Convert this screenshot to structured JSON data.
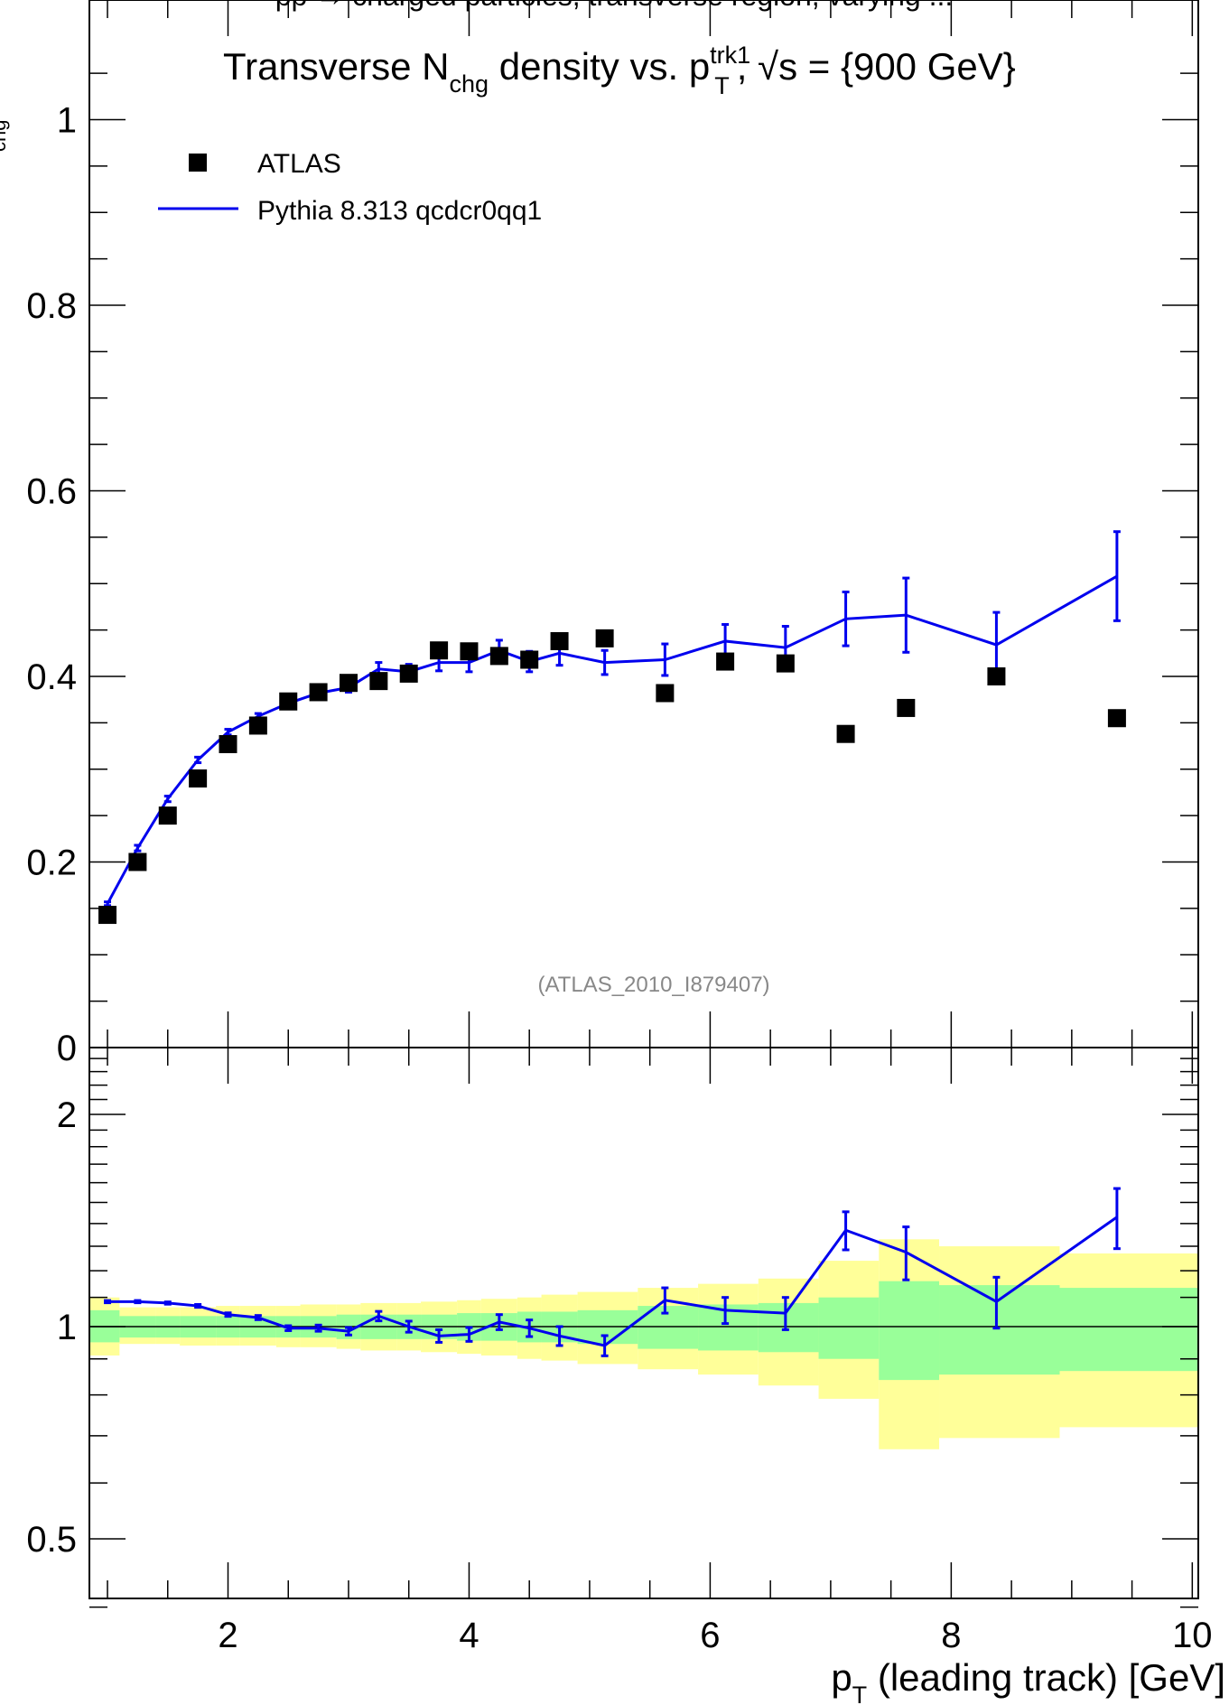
{
  "header_fragment": "pp → charged particles, transverse region, varying ...",
  "chart_data": [
    {
      "type": "scatter",
      "panel": "main",
      "title": {
        "base": "Transverse N",
        "sub": "chg",
        "mid": " density vs. p",
        "sup": "trk1",
        "sub2": "T",
        "suffix": ", √s = {900 GeV}"
      },
      "ylim": [
        0,
        1.1
      ],
      "xlim": [
        0.85,
        10.05
      ],
      "yticks": [
        "0",
        "0.2",
        "0.4",
        "0.6",
        "0.8",
        "1"
      ],
      "ytick_values": [
        0,
        0.2,
        0.4,
        0.6,
        0.8,
        1.0
      ],
      "ylabel_fragment": "chg",
      "annotation": "(ATLAS_2010_I879407)",
      "legend": {
        "placement": "top-left",
        "entries": [
          {
            "label": "ATLAS",
            "marker": "square",
            "color": "#000000"
          },
          {
            "label": "Pythia 8.313 qcdcr0qq1",
            "marker": "line",
            "color": "#0000ee"
          }
        ]
      },
      "series": [
        {
          "name": "ATLAS",
          "color": "#000000",
          "x": [
            1.0,
            1.25,
            1.5,
            1.75,
            2.0,
            2.25,
            2.5,
            2.75,
            3.0,
            3.25,
            3.5,
            3.75,
            4.0,
            4.25,
            4.5,
            4.75,
            5.125,
            5.625,
            6.125,
            6.625,
            7.125,
            7.625,
            8.375,
            9.375
          ],
          "y": [
            0.143,
            0.2,
            0.25,
            0.29,
            0.327,
            0.347,
            0.373,
            0.383,
            0.393,
            0.395,
            0.403,
            0.428,
            0.427,
            0.422,
            0.418,
            0.438,
            0.441,
            0.382,
            0.416,
            0.414,
            0.338,
            0.366,
            0.4,
            0.355
          ]
        },
        {
          "name": "Pythia 8.313 qcdcr0qq1",
          "color": "#0000ee",
          "x": [
            1.0,
            1.25,
            1.5,
            1.75,
            2.0,
            2.25,
            2.5,
            2.75,
            3.0,
            3.25,
            3.5,
            3.75,
            4.0,
            4.25,
            4.5,
            4.75,
            5.125,
            5.625,
            6.125,
            6.625,
            7.125,
            7.625,
            8.375,
            9.375
          ],
          "y": [
            0.155,
            0.215,
            0.268,
            0.31,
            0.34,
            0.357,
            0.371,
            0.382,
            0.388,
            0.408,
            0.405,
            0.415,
            0.415,
            0.428,
            0.416,
            0.425,
            0.415,
            0.418,
            0.438,
            0.431,
            0.462,
            0.466,
            0.434,
            0.508
          ],
          "err": [
            0.002,
            0.003,
            0.003,
            0.003,
            0.003,
            0.003,
            0.004,
            0.004,
            0.005,
            0.007,
            0.008,
            0.009,
            0.01,
            0.011,
            0.011,
            0.013,
            0.013,
            0.017,
            0.018,
            0.023,
            0.029,
            0.04,
            0.035,
            0.048
          ]
        }
      ]
    },
    {
      "type": "line",
      "panel": "ratio",
      "scale": "log",
      "ylim": [
        0.38,
        2.5
      ],
      "xlim": [
        0.85,
        10.05
      ],
      "yticks": [
        "0.5",
        "1",
        "2"
      ],
      "ytick_values": [
        0.5,
        1,
        2
      ],
      "xticks": [
        "2",
        "4",
        "6",
        "8",
        "10"
      ],
      "xtick_values": [
        2,
        4,
        6,
        8,
        10
      ],
      "xlabel": {
        "base": "p",
        "sub": "T",
        "suffix": " (leading track) [GeV]"
      },
      "bands": {
        "colors": {
          "inner": "#99ff99",
          "outer": "#ffff99"
        },
        "edges": [
          0.85,
          1.1,
          1.4,
          1.6,
          1.9,
          2.1,
          2.4,
          2.6,
          2.9,
          3.1,
          3.4,
          3.6,
          3.9,
          4.1,
          4.4,
          4.6,
          4.9,
          5.4,
          5.9,
          6.4,
          6.9,
          7.4,
          7.9,
          8.9,
          10.05
        ],
        "inner_lo": [
          0.95,
          0.965,
          0.965,
          0.965,
          0.965,
          0.965,
          0.965,
          0.965,
          0.96,
          0.96,
          0.96,
          0.96,
          0.955,
          0.955,
          0.95,
          0.95,
          0.945,
          0.93,
          0.925,
          0.92,
          0.9,
          0.84,
          0.855,
          0.865
        ],
        "inner_hi": [
          1.055,
          1.035,
          1.035,
          1.035,
          1.035,
          1.035,
          1.035,
          1.035,
          1.04,
          1.04,
          1.04,
          1.04,
          1.045,
          1.045,
          1.05,
          1.05,
          1.055,
          1.07,
          1.075,
          1.08,
          1.1,
          1.16,
          1.145,
          1.135
        ],
        "outer_lo": [
          0.91,
          0.945,
          0.945,
          0.94,
          0.94,
          0.94,
          0.935,
          0.935,
          0.93,
          0.925,
          0.925,
          0.92,
          0.915,
          0.91,
          0.9,
          0.895,
          0.885,
          0.87,
          0.855,
          0.825,
          0.79,
          0.67,
          0.695,
          0.72
        ],
        "outer_hi": [
          1.1,
          1.065,
          1.065,
          1.065,
          1.07,
          1.07,
          1.07,
          1.075,
          1.075,
          1.08,
          1.08,
          1.085,
          1.09,
          1.095,
          1.1,
          1.11,
          1.12,
          1.135,
          1.15,
          1.17,
          1.24,
          1.33,
          1.3,
          1.27
        ]
      },
      "series": [
        {
          "name": "Pythia 8.313 qcdcr0qq1",
          "color": "#0000ee",
          "x": [
            1.0,
            1.25,
            1.5,
            1.75,
            2.0,
            2.25,
            2.5,
            2.75,
            3.0,
            3.25,
            3.5,
            3.75,
            4.0,
            4.25,
            4.5,
            4.75,
            5.125,
            5.625,
            6.125,
            6.625,
            7.125,
            7.625,
            8.375,
            9.375
          ],
          "y": [
            1.085,
            1.085,
            1.08,
            1.07,
            1.04,
            1.03,
            0.995,
            0.995,
            0.985,
            1.035,
            1.0,
            0.97,
            0.975,
            1.015,
            0.995,
            0.97,
            0.94,
            1.09,
            1.055,
            1.045,
            1.37,
            1.275,
            1.085,
            1.43
          ],
          "err": [
            0.004,
            0.004,
            0.004,
            0.005,
            0.006,
            0.007,
            0.008,
            0.01,
            0.012,
            0.016,
            0.018,
            0.02,
            0.022,
            0.025,
            0.027,
            0.03,
            0.031,
            0.045,
            0.045,
            0.055,
            0.085,
            0.11,
            0.09,
            0.14
          ]
        }
      ]
    }
  ]
}
